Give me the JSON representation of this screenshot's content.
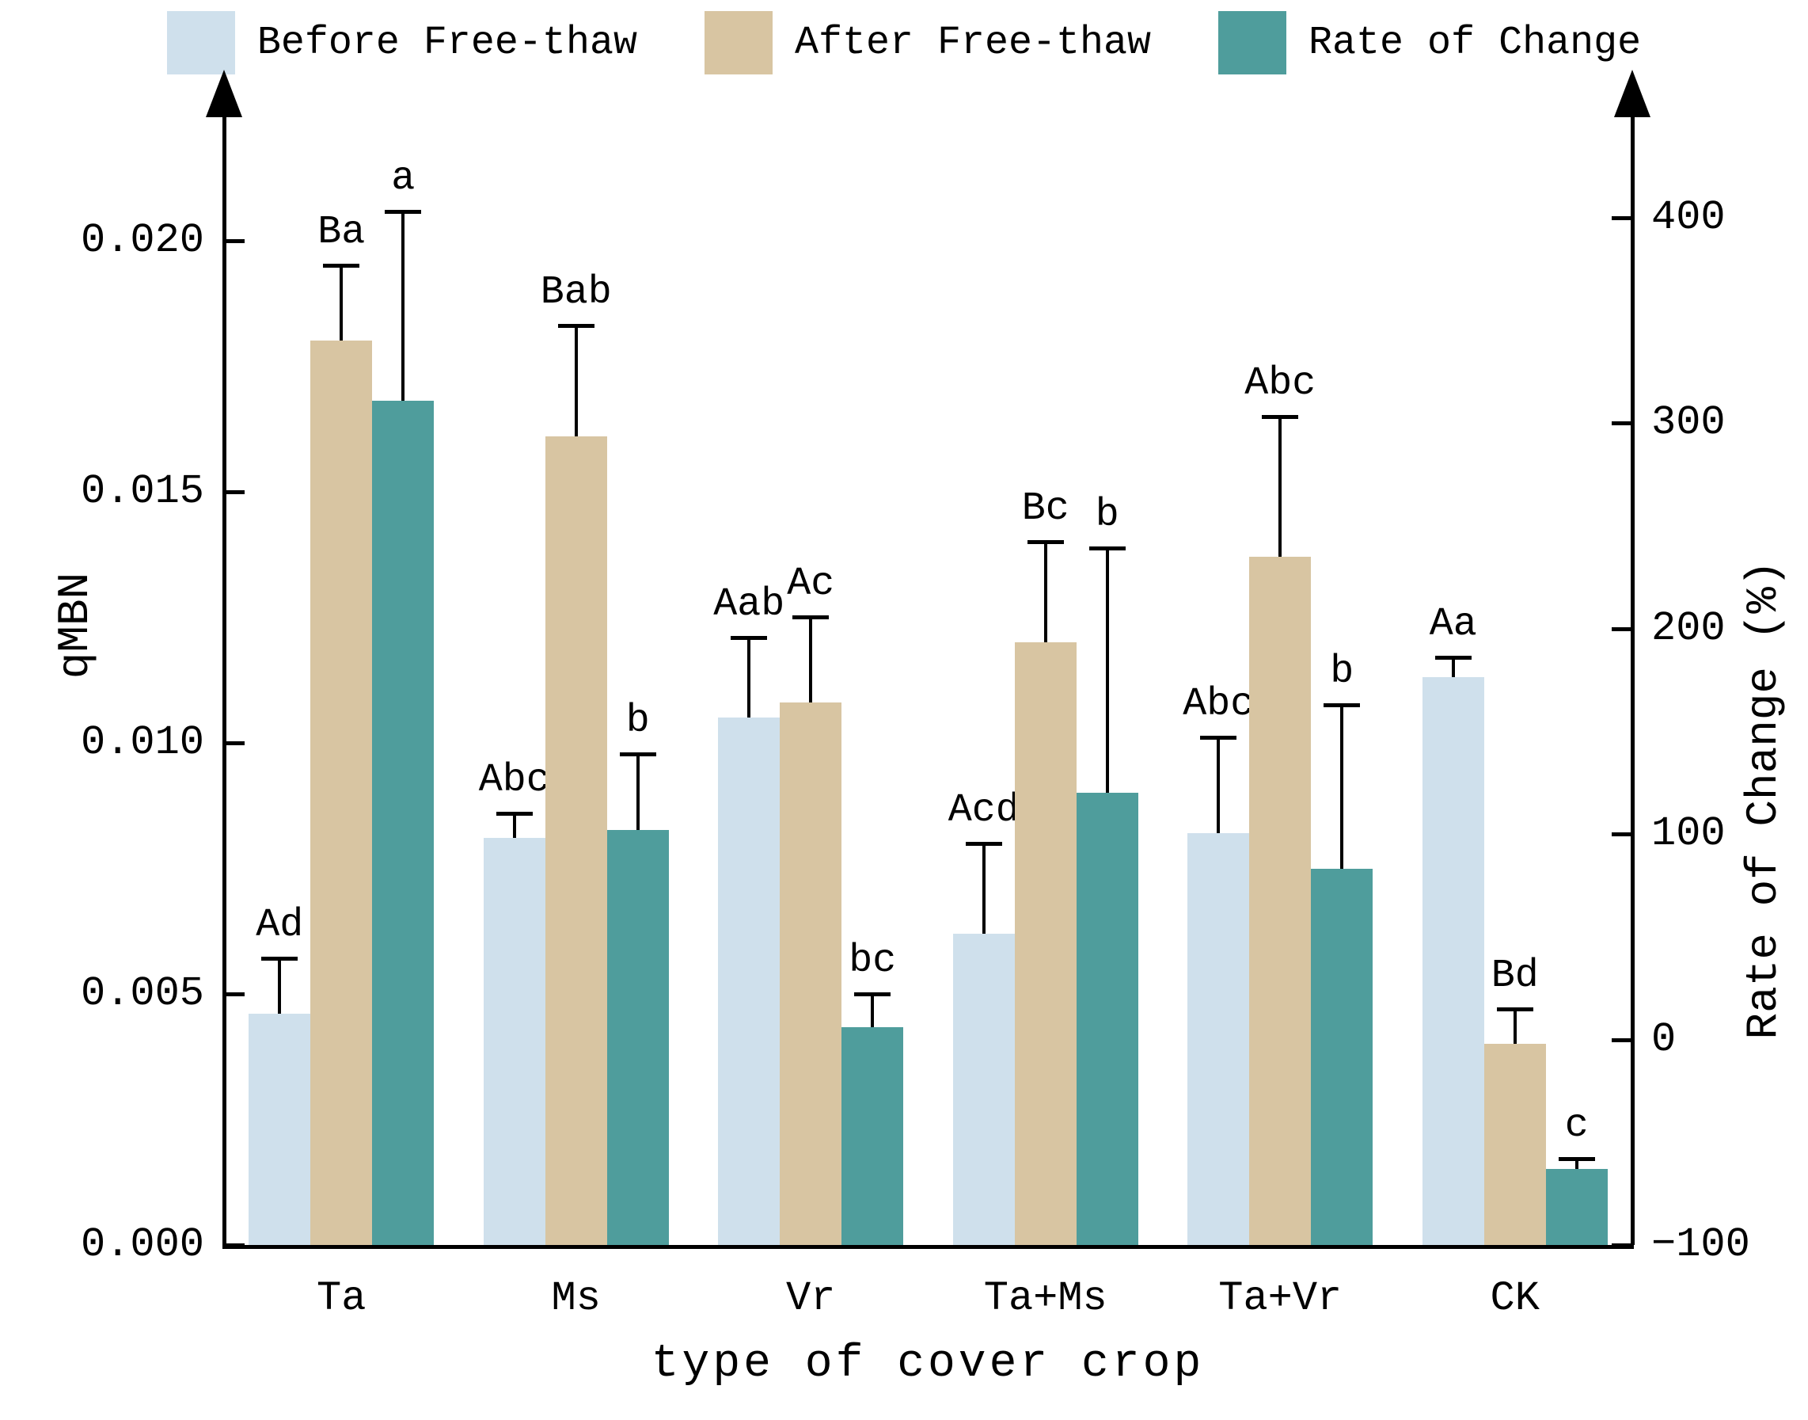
{
  "legend": [
    {
      "label": "Before Free-thaw",
      "color": "#cfe0ec"
    },
    {
      "label": "After Free-thaw",
      "color": "#d8c5a2"
    },
    {
      "label": "Rate of Change",
      "color": "#4f9d9c"
    }
  ],
  "axes": {
    "left": {
      "title": "qMBN",
      "tick_labels": [
        "0.000",
        "0.005",
        "0.010",
        "0.015",
        "0.020"
      ],
      "tick_values": [
        0,
        0.005,
        0.01,
        0.015,
        0.02
      ]
    },
    "right": {
      "title": "Rate of Change (%)",
      "tick_labels": [
        "−100",
        "0",
        "100",
        "200",
        "300",
        "400"
      ],
      "tick_values": [
        -100,
        0,
        100,
        200,
        300,
        400
      ]
    },
    "x": {
      "title": "type of cover crop"
    }
  },
  "chart_data": {
    "type": "bar",
    "categories": [
      "Ta",
      "Ms",
      "Vr",
      "Ta+Ms",
      "Ta+Vr",
      "CK"
    ],
    "series": [
      {
        "name": "Before Free-thaw",
        "axis": "left",
        "color": "#cfe0ec",
        "values": [
          0.0046,
          0.0081,
          0.0105,
          0.0062,
          0.0082,
          0.0113
        ],
        "errors": [
          0.0011,
          0.0005,
          0.0016,
          0.0018,
          0.0019,
          0.0004
        ],
        "letters": [
          "Ad",
          "Abc",
          "Aab",
          "Acd",
          "Abc",
          "Aa"
        ]
      },
      {
        "name": "After Free-thaw",
        "axis": "left",
        "color": "#d8c5a2",
        "values": [
          0.018,
          0.0161,
          0.0108,
          0.012,
          0.0137,
          0.004
        ],
        "errors": [
          0.0015,
          0.0022,
          0.0017,
          0.002,
          0.0028,
          0.0007
        ],
        "letters": [
          "Ba",
          "Bab",
          "Ac",
          "Bc",
          "Abc",
          "Bd"
        ]
      },
      {
        "name": "Rate of Change",
        "axis": "right",
        "color": "#4f9d9c",
        "values": [
          311,
          102,
          6,
          120,
          83,
          -63
        ],
        "errors": [
          92,
          37,
          16,
          119,
          80,
          5
        ],
        "letters": [
          "a",
          "b",
          "bc",
          "b",
          "b",
          "c"
        ]
      }
    ],
    "title": "",
    "xlabel": "type of cover crop",
    "ylabel_left": "qMBN",
    "ylabel_right": "Rate of Change (%)",
    "ylim_left": [
      0,
      0.0225
    ],
    "ylim_right": [
      -100,
      450
    ],
    "grid": false,
    "legend_position": "top",
    "error_bars": "upper-only"
  }
}
